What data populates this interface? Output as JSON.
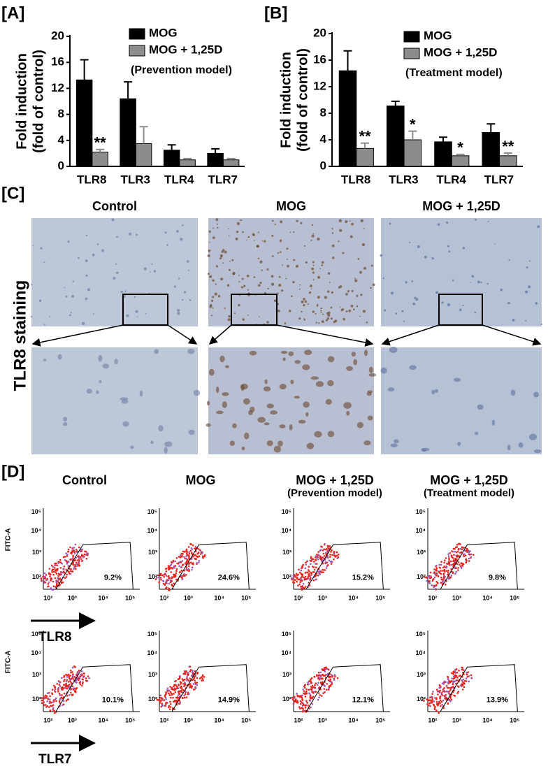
{
  "chart_data": [
    {
      "type": "bar",
      "panel_label": "[A]",
      "y_label": [
        "Fold induction",
        "(fold of control)"
      ],
      "categories": [
        "TLR8",
        "TLR3",
        "TLR4",
        "TLR7"
      ],
      "ylim": [
        0,
        20
      ],
      "yticks": [
        0,
        4,
        8,
        12,
        16,
        20
      ],
      "legend_note": "(Prevention model)",
      "series": [
        {
          "name": "MOG",
          "color": "#000000",
          "values": [
            13.3,
            10.4,
            2.5,
            2.0
          ],
          "errors": [
            3.1,
            2.6,
            0.8,
            0.7
          ]
        },
        {
          "name": "MOG + 1,25D",
          "color": "#8c8c8c",
          "values": [
            2.2,
            3.5,
            1.0,
            1.0
          ],
          "errors": [
            0.4,
            2.6,
            0.2,
            0.2
          ],
          "significance": [
            "**",
            null,
            null,
            null
          ]
        }
      ]
    },
    {
      "type": "bar",
      "panel_label": "[B]",
      "y_label": [
        "Fold induction",
        "(fold of control)"
      ],
      "categories": [
        "TLR8",
        "TLR3",
        "TLR4",
        "TLR7"
      ],
      "ylim": [
        0,
        20
      ],
      "yticks": [
        0,
        4,
        8,
        12,
        16,
        20
      ],
      "legend_note": "(Treatment model)",
      "series": [
        {
          "name": "MOG",
          "color": "#000000",
          "values": [
            14.4,
            9.1,
            3.7,
            5.1
          ],
          "errors": [
            3.0,
            0.7,
            0.7,
            1.3
          ]
        },
        {
          "name": "MOG + 1,25D",
          "color": "#8c8c8c",
          "values": [
            2.7,
            4.0,
            1.6,
            1.6
          ],
          "errors": [
            0.8,
            1.3,
            0.2,
            0.4
          ],
          "significance": [
            "**",
            "*",
            "*",
            "**"
          ]
        }
      ]
    }
  ],
  "staining": {
    "panel_label": "[C]",
    "row_label": "TLR8 staining",
    "columns": [
      "Control",
      "MOG",
      "MOG + 1,25D"
    ]
  },
  "flow": {
    "panel_label": "[D]",
    "columns": [
      [
        "Control"
      ],
      [
        "MOG"
      ],
      [
        "MOG + 1,25D",
        "(Prevention model)"
      ],
      [
        "MOG + 1,25D",
        "(Treatment model)"
      ]
    ],
    "y_axis_label": "FITC-A",
    "axis_ticks": [
      "10²",
      "10³",
      "10⁴",
      "10⁵"
    ],
    "rows": [
      {
        "marker": "TLR8",
        "gated": [
          "9.2%",
          "24.6%",
          "15.2%",
          "9.8%"
        ]
      },
      {
        "marker": "TLR7",
        "gated": [
          "10.1%",
          "14.9%",
          "12.1%",
          "13.9%"
        ]
      }
    ]
  }
}
